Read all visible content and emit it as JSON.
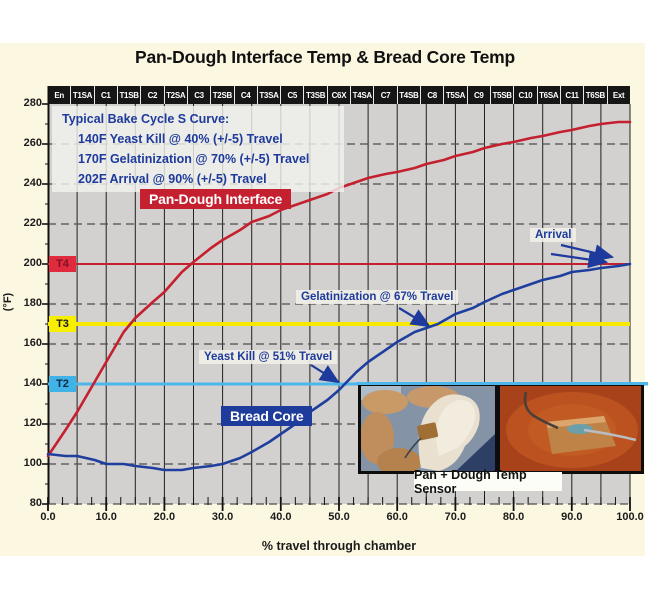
{
  "title": "Pan-Dough Interface Temp & Bread Core Temp",
  "zones": [
    "En",
    "T1SA",
    "C1",
    "T1SB",
    "C2",
    "T2SA",
    "C3",
    "T2SB",
    "C4",
    "T3SA",
    "C5",
    "T3SB",
    "C6X",
    "T4SA",
    "C7",
    "T4SB",
    "C8",
    "T5SA",
    "C9",
    "T5SB",
    "C10",
    "T6SA",
    "C11",
    "T6SB",
    "Ext"
  ],
  "y_axis": {
    "label": "(°F)",
    "ticks": [
      280,
      260,
      240,
      220,
      200,
      180,
      160,
      140,
      120,
      100,
      80
    ]
  },
  "x_axis": {
    "label": "% travel through chamber",
    "ticks": [
      "0.0",
      "10.0",
      "20.0",
      "30.0",
      "40.0",
      "50.0",
      "60.0",
      "70.0",
      "80.0",
      "90.0",
      "100.0"
    ]
  },
  "info_box": {
    "title": "Typical Bake Cycle S Curve:",
    "lines": [
      "140F Yeast Kill @ 40% (+/-5) Travel",
      "170F Gelatinization @ 70% (+/-5) Travel",
      "202F Arrival @ 90% (+/-5) Travel"
    ]
  },
  "photo_caption": "Pan + Dough Temp Sensor",
  "colors": {
    "background": "#fbf7e1",
    "plot_background": "#d2d1cf",
    "zone_band": "#161616",
    "pan_dough_red": "#c5202f",
    "bread_core_blue": "#1f3f9f",
    "annotation_blue": "#1d3a9c",
    "t3_yellow": "#f6e800",
    "t2_cyan": "#4db6ea"
  },
  "chart_data": {
    "type": "line",
    "title": "Pan-Dough Interface Temp & Bread Core Temp",
    "xlabel": "% travel through chamber",
    "ylabel": "(°F)",
    "xlim": [
      0,
      100
    ],
    "ylim": [
      80,
      280
    ],
    "vertical_grid_step_pct": 5,
    "dashed_gridlines": [
      260,
      240,
      220,
      180,
      160,
      120,
      100,
      80
    ],
    "series": [
      {
        "name": "Pan-Dough Interface",
        "color": "#c5202f",
        "points": [
          [
            0,
            104
          ],
          [
            3,
            117
          ],
          [
            5,
            126
          ],
          [
            8,
            141
          ],
          [
            10,
            151
          ],
          [
            13,
            166
          ],
          [
            15,
            173
          ],
          [
            18,
            181
          ],
          [
            20,
            186
          ],
          [
            23,
            196
          ],
          [
            25,
            201
          ],
          [
            28,
            208
          ],
          [
            30,
            212
          ],
          [
            33,
            217
          ],
          [
            35,
            221
          ],
          [
            38,
            224
          ],
          [
            40,
            227
          ],
          [
            43,
            230
          ],
          [
            45,
            232
          ],
          [
            48,
            235
          ],
          [
            50,
            238
          ],
          [
            53,
            241
          ],
          [
            55,
            243
          ],
          [
            58,
            245
          ],
          [
            60,
            246
          ],
          [
            63,
            248
          ],
          [
            65,
            250
          ],
          [
            68,
            252
          ],
          [
            70,
            254
          ],
          [
            73,
            256
          ],
          [
            75,
            258
          ],
          [
            78,
            260
          ],
          [
            80,
            261
          ],
          [
            83,
            263
          ],
          [
            85,
            264
          ],
          [
            88,
            266
          ],
          [
            90,
            267
          ],
          [
            93,
            269
          ],
          [
            95,
            270
          ],
          [
            98,
            271
          ],
          [
            100,
            271
          ]
        ]
      },
      {
        "name": "Bread Core",
        "color": "#1f3f9f",
        "points": [
          [
            0,
            105
          ],
          [
            3,
            104
          ],
          [
            5,
            104
          ],
          [
            8,
            102
          ],
          [
            10,
            100
          ],
          [
            13,
            100
          ],
          [
            15,
            99
          ],
          [
            18,
            98
          ],
          [
            20,
            97
          ],
          [
            23,
            97
          ],
          [
            25,
            98
          ],
          [
            28,
            99
          ],
          [
            30,
            100
          ],
          [
            33,
            103
          ],
          [
            35,
            106
          ],
          [
            38,
            111
          ],
          [
            40,
            115
          ],
          [
            43,
            121
          ],
          [
            45,
            126
          ],
          [
            48,
            132
          ],
          [
            50,
            137
          ],
          [
            51,
            140
          ],
          [
            53,
            146
          ],
          [
            55,
            151
          ],
          [
            58,
            157
          ],
          [
            60,
            161
          ],
          [
            63,
            166
          ],
          [
            65,
            168
          ],
          [
            67,
            170
          ],
          [
            70,
            175
          ],
          [
            73,
            178
          ],
          [
            75,
            181
          ],
          [
            78,
            185
          ],
          [
            80,
            187
          ],
          [
            83,
            190
          ],
          [
            85,
            192
          ],
          [
            88,
            194
          ],
          [
            90,
            196
          ],
          [
            93,
            197
          ],
          [
            95,
            198
          ],
          [
            98,
            199
          ],
          [
            100,
            200
          ]
        ]
      }
    ],
    "ref_lines": [
      {
        "label": "T4",
        "temp": 200,
        "color": "#c5202f",
        "width": 2
      },
      {
        "label": "T3",
        "temp": 170,
        "color": "#f6e800",
        "width": 4
      },
      {
        "label": "T2",
        "temp": 140,
        "color": "#4db6ea",
        "width": 3
      }
    ],
    "events": [
      {
        "label": "Yeast Kill @ 51% Travel",
        "pct": 51,
        "temp": 140
      },
      {
        "label": "Gelatinization @ 67% Travel",
        "pct": 67,
        "temp": 170
      },
      {
        "label": "Arrival",
        "pct": 100,
        "temp": 200
      }
    ]
  }
}
